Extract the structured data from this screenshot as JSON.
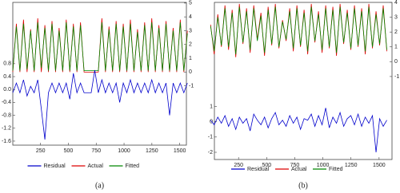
{
  "chart_data": [
    {
      "type": "line",
      "caption": "(a)",
      "x": [
        1,
        33,
        65,
        97,
        129,
        161,
        193,
        225,
        257,
        289,
        321,
        353,
        385,
        417,
        449,
        481,
        513,
        545,
        577,
        609,
        641,
        673,
        705,
        737,
        769,
        801,
        833,
        865,
        897,
        929,
        961,
        993,
        1025,
        1057,
        1089,
        1121,
        1153,
        1185,
        1217,
        1249,
        1281,
        1313,
        1345,
        1377,
        1409,
        1441,
        1473,
        1505,
        1537,
        1569
      ],
      "xlim": [
        1,
        1560
      ],
      "xticks": [
        250,
        500,
        750,
        1000,
        1250,
        1500
      ],
      "ylim": [
        -1.725,
        2.7
      ],
      "yticks": [
        0.8,
        0.4,
        {
          "value": 0,
          "label": "0.0"
        },
        -0.4,
        -0.8,
        -1.2,
        -1.6
      ],
      "y2lim": [
        -5.3,
        5.05
      ],
      "y2ticks": [
        5,
        4,
        3,
        2,
        1,
        0,
        -1
      ],
      "series": [
        {
          "name": "Residual",
          "color": "#0000cc",
          "values": [
            -0.1,
            0.2,
            -0.1,
            0.3,
            -0.2,
            0.1,
            -0.1,
            0.3,
            -0.6,
            -1.55,
            -0.1,
            0.2,
            -0.1,
            0.2,
            -0.1,
            0.2,
            -0.3,
            0.5,
            -0.1,
            0.2,
            -0.1,
            -0.1,
            -0.1,
            0.6,
            -0.1,
            0.3,
            -0.1,
            0.2,
            -0.1,
            0.2,
            -0.4,
            0.2,
            -0.1,
            0.3,
            -0.1,
            0.2,
            -0.1,
            0.2,
            -0.1,
            0.3,
            -0.1,
            0.2,
            -0.1,
            0.2,
            -0.8,
            0.2,
            -0.1,
            0.2,
            -0.1,
            0.2
          ]
        },
        {
          "name": "Actual",
          "color": "#dd0000",
          "axis": "y2",
          "values": [
            0,
            3.5,
            0,
            3.8,
            0,
            3.1,
            0,
            3.9,
            0,
            3.4,
            0,
            3.7,
            0,
            3.2,
            0,
            3.8,
            0,
            3.5,
            0,
            3.6,
            0,
            0,
            0,
            0,
            0,
            3.9,
            0,
            3.3,
            0,
            3.7,
            0,
            3.5,
            0,
            3.8,
            0,
            3.1,
            0,
            3.6,
            0,
            3.9,
            0,
            3.4,
            0,
            3.7,
            0,
            3.2,
            0,
            3.8,
            0,
            3.0
          ]
        },
        {
          "name": "Fitted",
          "color": "#008800",
          "axis": "y2",
          "values": [
            0.1,
            3.3,
            0.1,
            3.5,
            0.2,
            3.0,
            0.1,
            3.6,
            0.3,
            3.2,
            0.1,
            3.5,
            0.1,
            3.0,
            0.1,
            3.6,
            0.1,
            3.3,
            0.1,
            3.4,
            0.1,
            0.1,
            0.1,
            0.1,
            0.1,
            3.6,
            0.1,
            3.1,
            0.1,
            3.5,
            0.1,
            3.3,
            0.1,
            3.5,
            0.1,
            2.9,
            0.1,
            3.4,
            0.1,
            3.6,
            0.1,
            3.2,
            0.1,
            3.5,
            0.1,
            3.0,
            0.1,
            3.6,
            0.1,
            2.8
          ]
        }
      ]
    },
    {
      "type": "line",
      "caption": "(b)",
      "x": [
        1,
        33,
        65,
        97,
        129,
        161,
        193,
        225,
        257,
        289,
        321,
        353,
        385,
        417,
        449,
        481,
        513,
        545,
        577,
        609,
        641,
        673,
        705,
        737,
        769,
        801,
        833,
        865,
        897,
        929,
        961,
        993,
        1025,
        1057,
        1089,
        1121,
        1153,
        1185,
        1217,
        1249,
        1281,
        1313,
        1345,
        1377,
        1409,
        1441,
        1473,
        1505,
        1537,
        1569
      ],
      "xlim": [
        35,
        1615
      ],
      "xticks": [
        250,
        500,
        750,
        1000,
        1250,
        1500
      ],
      "ylim": [
        -2.47,
        7.8
      ],
      "yticks": [
        1,
        0,
        -1,
        -2
      ],
      "y2lim": [
        -6.6,
        4
      ],
      "y2ticks": [
        4,
        3,
        2,
        1,
        0,
        -1
      ],
      "series": [
        {
          "name": "Residual",
          "color": "#0000cc",
          "values": [
            0.1,
            -0.2,
            0.3,
            -0.1,
            0.4,
            -0.3,
            0.2,
            -0.5,
            0.3,
            -0.1,
            0.2,
            -0.6,
            0.5,
            0.1,
            -0.2,
            0.3,
            -0.4,
            0.2,
            0.6,
            -0.2,
            0.1,
            -0.3,
            0.4,
            -0.1,
            0.3,
            -0.5,
            0.2,
            0.1,
            0.5,
            -0.3,
            0.4,
            -0.2,
            0.9,
            -0.4,
            0.3,
            -0.1,
            0.6,
            -0.3,
            0.2,
            0.4,
            -0.2,
            0.5,
            -0.3,
            0.3,
            -0.1,
            0.4,
            -2.0,
            0.2,
            -0.3,
            0.1
          ]
        },
        {
          "name": "Actual",
          "color": "#dd0000",
          "axis": "y2",
          "values": [
            2.5,
            0.5,
            3.2,
            1.0,
            3.8,
            0.8,
            3.5,
            0.3,
            3.9,
            1.2,
            3.6,
            0.6,
            3.8,
            1.5,
            3.3,
            0.4,
            3.7,
            1.1,
            3.9,
            0.9,
            2.8,
            1.4,
            3.6,
            0.7,
            3.8,
            1.0,
            3.5,
            0.5,
            3.9,
            1.3,
            3.4,
            0.6,
            3.8,
            0.9,
            3.7,
            0.4,
            3.9,
            1.2,
            3.5,
            0.8,
            3.8,
            1.0,
            3.6,
            0.5,
            3.9,
            0.9,
            3.4,
            1.1,
            3.8,
            0.7
          ]
        },
        {
          "name": "Fitted",
          "color": "#008800",
          "axis": "y2",
          "values": [
            2.4,
            0.7,
            3.0,
            1.1,
            3.6,
            1.0,
            3.3,
            0.5,
            3.7,
            1.3,
            3.4,
            0.8,
            3.6,
            1.4,
            3.1,
            0.6,
            3.5,
            1.2,
            3.7,
            1.0,
            2.7,
            1.5,
            3.4,
            0.9,
            3.6,
            1.1,
            3.3,
            0.7,
            3.7,
            1.4,
            3.2,
            0.8,
            3.6,
            1.0,
            3.5,
            0.6,
            3.7,
            1.3,
            3.3,
            0.9,
            3.6,
            1.1,
            3.4,
            0.7,
            3.7,
            1.0,
            3.2,
            1.2,
            3.6,
            0.8
          ]
        }
      ]
    }
  ]
}
